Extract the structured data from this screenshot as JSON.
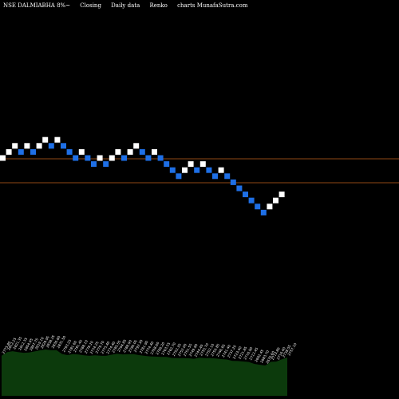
{
  "header": {
    "symbol_label": "NSE DALMIABHA 8%~",
    "price_type": "Closing",
    "frequency": "Daily data",
    "chart_kind": "Renko",
    "source": "charts MunafaSutra.com"
  },
  "colors": {
    "up_brick": "#ffffff",
    "down_brick": "#1e6fe6",
    "level_line": "#c0601a",
    "volume_fill": "#0c3a0c",
    "background": "#000000"
  },
  "chart_data": {
    "type": "renko",
    "directions": [
      "up",
      "up",
      "up",
      "down",
      "up",
      "down",
      "up",
      "up",
      "down",
      "up",
      "down",
      "down",
      "down",
      "up",
      "down",
      "down",
      "up",
      "down",
      "up",
      "up",
      "down",
      "up",
      "up",
      "down",
      "down",
      "up",
      "down",
      "down",
      "down",
      "down",
      "up",
      "up",
      "down",
      "up",
      "down",
      "down",
      "up",
      "down",
      "down",
      "down",
      "down",
      "down",
      "down",
      "down",
      "up",
      "up",
      "up"
    ],
    "levels": [
      0,
      2
    ],
    "volume_labels": [
      "2775.85",
      "2812.25",
      "2821.35",
      "2812.35",
      "2804.95",
      "2807.75",
      "2819.10",
      "2829.95",
      "2838.25",
      "2830.60",
      "2831.50",
      "2793.25",
      "2781.60",
      "2791.45",
      "2788.10",
      "2779.20",
      "2774.25",
      "2779.70",
      "2775.40",
      "2774.40",
      "2785.55",
      "2794.85",
      "2788.90",
      "2790.05",
      "2792.30",
      "2781.90",
      "2774.40",
      "2768.60",
      "2766.20",
      "2763.55",
      "2762.70",
      "2752.35",
      "2752.00",
      "2751.55",
      "2749.90",
      "2744.40",
      "2755.70",
      "2752.10",
      "2750.85",
      "2746.65",
      "2741.40",
      "2737.20",
      "2723.40",
      "2721.85",
      "2716.90",
      "2712.45",
      "2692.45",
      "2683.70",
      "2676.60",
      "2713.80",
      "2716.40",
      "2738.55",
      "2757.10"
    ]
  }
}
